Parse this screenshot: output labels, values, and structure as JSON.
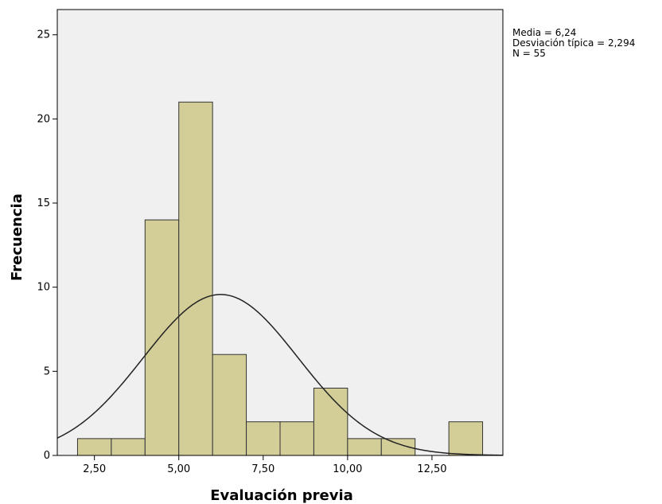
{
  "stats_box": {
    "mean": "Media = 6,24",
    "sd": "Desviación típica = 2,294",
    "n": "N = 55"
  },
  "chart_data": {
    "type": "bar",
    "subtype": "histogram",
    "xlabel": "Evaluación previa",
    "ylabel": "Frecuencia",
    "xlim": [
      1.4,
      14.6
    ],
    "ylim": [
      0,
      26.5
    ],
    "bin_width": 1,
    "bins": [
      {
        "start": 2,
        "end": 3,
        "count": 1
      },
      {
        "start": 3,
        "end": 4,
        "count": 1
      },
      {
        "start": 4,
        "end": 5,
        "count": 14
      },
      {
        "start": 5,
        "end": 6,
        "count": 21
      },
      {
        "start": 6,
        "end": 7,
        "count": 6
      },
      {
        "start": 7,
        "end": 8,
        "count": 2
      },
      {
        "start": 8,
        "end": 9,
        "count": 2
      },
      {
        "start": 9,
        "end": 10,
        "count": 4
      },
      {
        "start": 10,
        "end": 11,
        "count": 1
      },
      {
        "start": 11,
        "end": 12,
        "count": 1
      },
      {
        "start": 13,
        "end": 14,
        "count": 2
      }
    ],
    "x_ticks": [
      {
        "value": 2.5,
        "label": "2,50"
      },
      {
        "value": 5,
        "label": "5,00"
      },
      {
        "value": 7.5,
        "label": "7,50"
      },
      {
        "value": 10,
        "label": "10,00"
      },
      {
        "value": 12.5,
        "label": "12,50"
      }
    ],
    "y_ticks": [
      {
        "value": 0,
        "label": "0"
      },
      {
        "value": 5,
        "label": "5"
      },
      {
        "value": 10,
        "label": "10"
      },
      {
        "value": 15,
        "label": "15"
      },
      {
        "value": 20,
        "label": "20"
      },
      {
        "value": 25,
        "label": "25"
      }
    ],
    "normal_curve": {
      "mean": 6.24,
      "sd": 2.294,
      "n": 55
    },
    "grid": false,
    "colors": {
      "plot_background": "#f0f0f0",
      "bar_fill": "#d3ce98",
      "bar_stroke": "#333333",
      "curve": "#222222"
    }
  }
}
